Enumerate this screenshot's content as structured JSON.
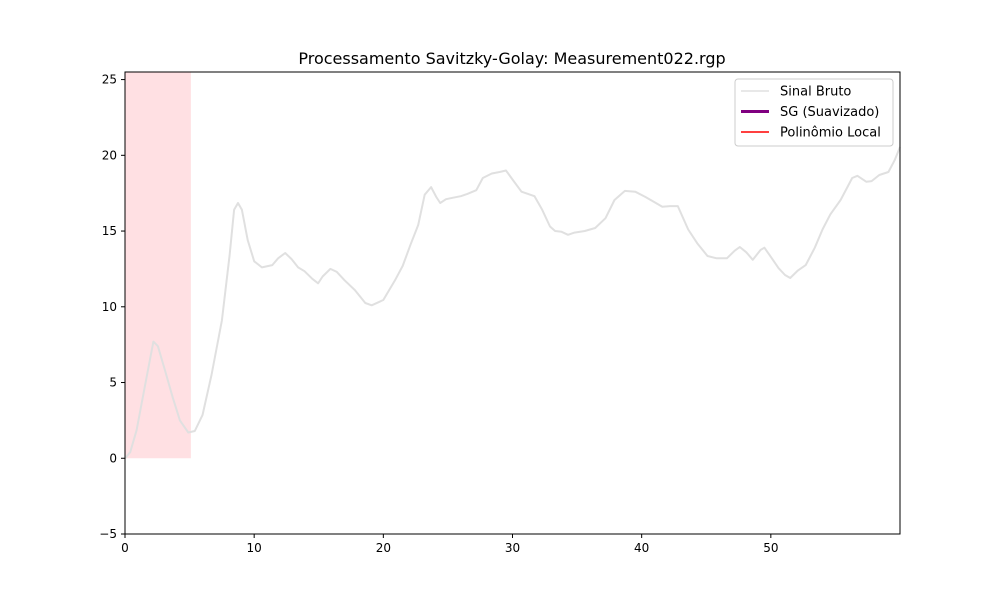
{
  "chart_data": {
    "type": "line",
    "title": "Processamento Savitzky-Golay: Measurement022.rgp",
    "xlabel": "",
    "ylabel": "",
    "xlim": [
      0,
      60
    ],
    "ylim": [
      -5,
      25.5
    ],
    "xticks": [
      0,
      10,
      20,
      30,
      40,
      50
    ],
    "yticks": [
      -5,
      0,
      5,
      10,
      15,
      20,
      25
    ],
    "ytick_labels": [
      "−5",
      "0",
      "5",
      "10",
      "15",
      "20",
      "25"
    ],
    "grid": false,
    "legend_placement": "upper-right",
    "highlight_window": {
      "x": [
        0,
        5.1
      ],
      "y": [
        0,
        25.5
      ],
      "color": "#ffe0e3"
    },
    "series": [
      {
        "name": "Sinal Bruto",
        "color": "#e0e0e0",
        "x": [
          0,
          0.4,
          0.9,
          1.55,
          2.2,
          2.55,
          3.1,
          3.7,
          4.25,
          4.9,
          5.4,
          6.0,
          6.7,
          7.5,
          8.1,
          8.45,
          8.75,
          9.05,
          9.5,
          10,
          10.6,
          11.4,
          11.85,
          12.4,
          12.9,
          13.4,
          13.9,
          14.5,
          14.95,
          15.3,
          15.9,
          16.4,
          17.0,
          17.8,
          18.6,
          19.1,
          20,
          20.9,
          21.5,
          22.1,
          22.7,
          23.2,
          23.7,
          24.1,
          24.4,
          24.85,
          25.4,
          26.0,
          26.5,
          27.2,
          27.7,
          28.4,
          29.0,
          29.5,
          30.0,
          30.7,
          31.7,
          32.3,
          32.9,
          33.3,
          33.8,
          34.3,
          34.8,
          35.6,
          36.4,
          37.2,
          37.9,
          38.7,
          39.5,
          40.3,
          41.0,
          41.6,
          42.2,
          42.8,
          43.6,
          44.3,
          45.1,
          45.8,
          46.6,
          47.2,
          47.6,
          48.1,
          48.6,
          49.2,
          49.5,
          50,
          50.6,
          51.1,
          51.5,
          52.1,
          52.7,
          53.4,
          54.0,
          54.6,
          55.4,
          56.3,
          56.7,
          57.4,
          57.8,
          58.4,
          59.1,
          59.6,
          60
        ],
        "values": [
          0,
          0.4,
          1.85,
          4.8,
          7.7,
          7.4,
          5.8,
          4.0,
          2.5,
          1.7,
          1.8,
          2.85,
          5.5,
          9.1,
          13.4,
          16.4,
          16.85,
          16.4,
          14.4,
          13.0,
          12.6,
          12.75,
          13.2,
          13.55,
          13.15,
          12.6,
          12.35,
          11.85,
          11.55,
          12.0,
          12.5,
          12.3,
          11.75,
          11.1,
          10.25,
          10.1,
          10.45,
          11.75,
          12.7,
          14.1,
          15.4,
          17.4,
          17.9,
          17.25,
          16.85,
          17.1,
          17.2,
          17.3,
          17.45,
          17.7,
          18.5,
          18.8,
          18.9,
          19.0,
          18.4,
          17.6,
          17.3,
          16.4,
          15.3,
          15.0,
          14.95,
          14.75,
          14.9,
          15.0,
          15.2,
          15.85,
          17.05,
          17.65,
          17.6,
          17.25,
          16.9,
          16.6,
          16.65,
          16.65,
          15.1,
          14.2,
          13.35,
          13.2,
          13.2,
          13.7,
          13.95,
          13.6,
          13.1,
          13.75,
          13.9,
          13.3,
          12.55,
          12.1,
          11.9,
          12.4,
          12.75,
          13.9,
          15.1,
          16.1,
          17.05,
          18.5,
          18.65,
          18.25,
          18.3,
          18.7,
          18.9,
          19.7,
          20.55
        ]
      },
      {
        "name": "SG (Suavizado)",
        "color": "#800080",
        "x": [],
        "values": []
      },
      {
        "name": "Polinômio Local",
        "color": "#ff0000",
        "x": [],
        "values": []
      }
    ]
  }
}
